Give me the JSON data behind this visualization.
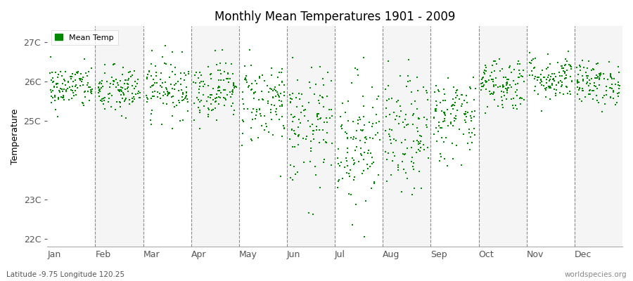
{
  "title": "Monthly Mean Temperatures 1901 - 2009",
  "ylabel": "Temperature",
  "xlabel_bottom": "Latitude -9.75 Longitude 120.25",
  "watermark": "worldspecies.org",
  "legend_label": "Mean Temp",
  "marker_color": "#008800",
  "bg_color": "#ffffff",
  "plot_bg_color_light": "#f5f5f5",
  "plot_bg_color_white": "#ffffff",
  "months": [
    "Jan",
    "Feb",
    "Mar",
    "Apr",
    "May",
    "Jun",
    "Jul",
    "Aug",
    "Sep",
    "Oct",
    "Nov",
    "Dec"
  ],
  "yticks": [
    22,
    23,
    25,
    26,
    27
  ],
  "ytick_labels": [
    "22C",
    "23C",
    "25C",
    "26C",
    "27C"
  ],
  "ylim": [
    21.8,
    27.4
  ],
  "num_years": 109,
  "seed": 42,
  "month_means": [
    25.85,
    25.75,
    25.85,
    25.8,
    25.5,
    24.8,
    24.5,
    24.6,
    25.1,
    25.95,
    26.1,
    25.95
  ],
  "month_stds": [
    0.28,
    0.32,
    0.38,
    0.38,
    0.55,
    0.75,
    0.85,
    0.75,
    0.55,
    0.35,
    0.3,
    0.28
  ]
}
